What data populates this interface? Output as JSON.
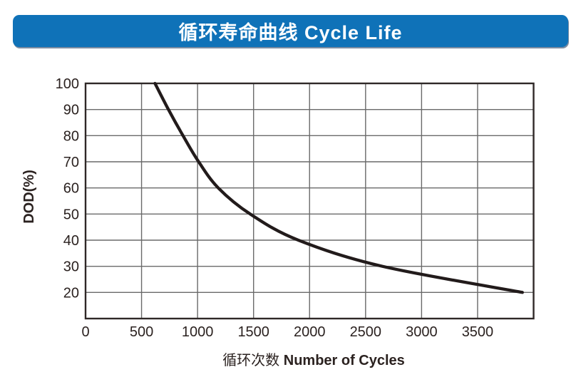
{
  "header": {
    "title": "循环寿命曲线 Cycle Life",
    "bg_color": "#0f72b8",
    "text_color": "#ffffff"
  },
  "chart_data": {
    "type": "line",
    "title": "循环寿命曲线 Cycle Life",
    "xlabel_zh": "循环次数",
    "xlabel_en": "Number of Cycles",
    "ylabel": "DOD(%)",
    "xlim": [
      0,
      4000
    ],
    "ylim": [
      10,
      100
    ],
    "xticks": [
      0,
      500,
      1000,
      1500,
      2000,
      2500,
      3000,
      3500
    ],
    "yticks": [
      100,
      90,
      80,
      70,
      60,
      50,
      40,
      30,
      20
    ],
    "grid": true,
    "legend": false,
    "series": [
      {
        "name": "cycle-life-curve",
        "color": "#221b1b",
        "points": [
          {
            "cycles": 620,
            "dod": 100
          },
          {
            "cycles": 740,
            "dod": 90
          },
          {
            "cycles": 870,
            "dod": 80
          },
          {
            "cycles": 1010,
            "dod": 70
          },
          {
            "cycles": 1185,
            "dod": 60
          },
          {
            "cycles": 1470,
            "dod": 50
          },
          {
            "cycles": 1900,
            "dod": 40
          },
          {
            "cycles": 2650,
            "dod": 30
          },
          {
            "cycles": 3900,
            "dod": 20
          }
        ]
      }
    ],
    "colors": {
      "grid": "#6a6a6a",
      "border": "#2f2827",
      "text": "#2b2220"
    }
  }
}
